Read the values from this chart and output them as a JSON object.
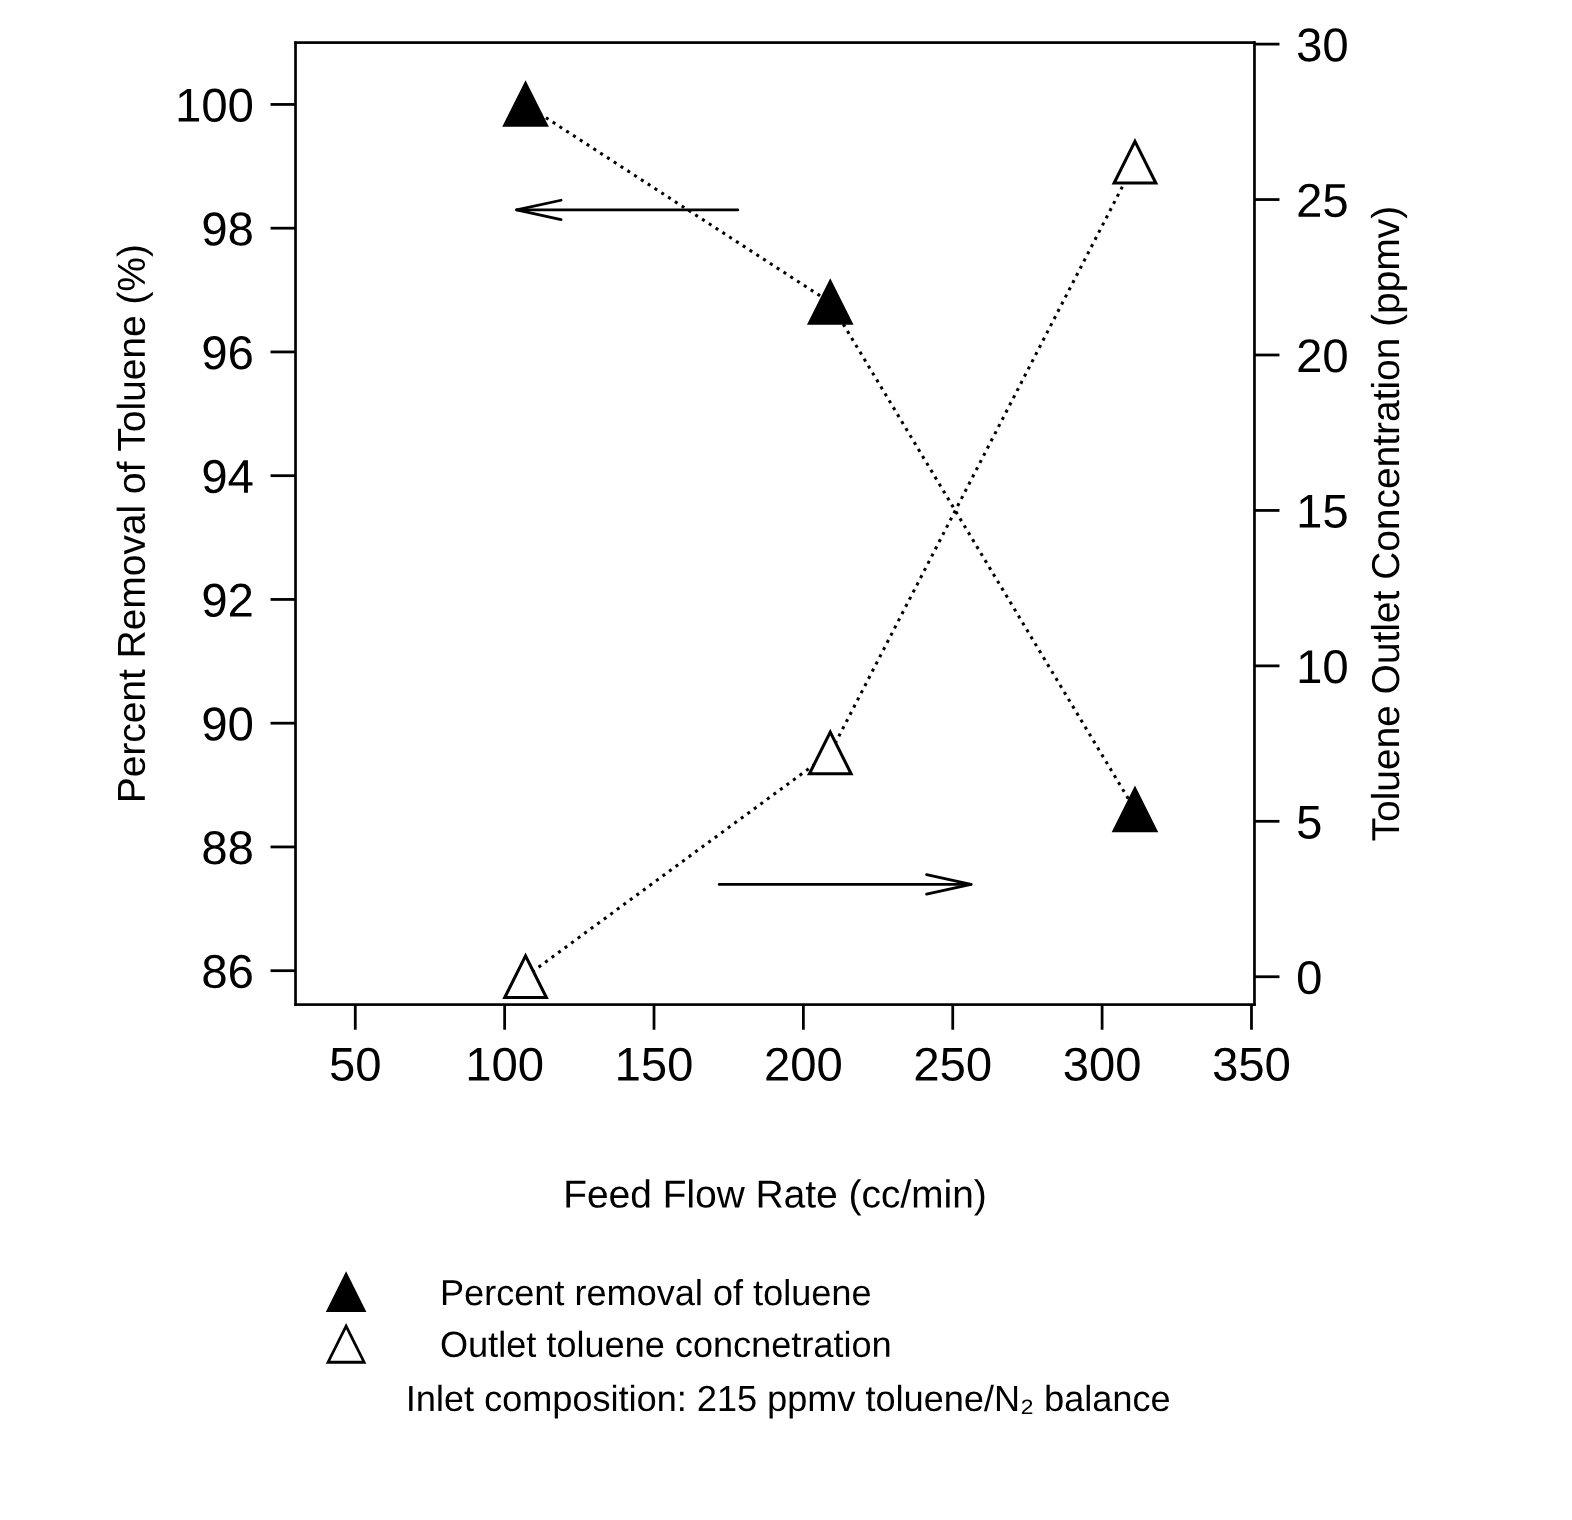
{
  "chart_data": {
    "type": "line",
    "xlabel": "Feed Flow Rate (cc/min)",
    "ylabel": "Percent Removal of Toluene (%)",
    "y2label": "Toluene Outlet Concentration (ppmv)",
    "x": [
      107,
      209,
      311
    ],
    "series": [
      {
        "name": "Percent removal of toluene",
        "color": "#000000",
        "values": [
          100,
          96.8,
          88.6
        ]
      },
      {
        "name": "Outlet toluene concnetration",
        "color": "#ffffff",
        "values": [
          0,
          7.2,
          26.2
        ],
        "axis": "y2"
      }
    ],
    "xlim": [
      30,
      351
    ],
    "xticks": [
      50,
      100,
      150,
      200,
      250,
      300,
      350
    ],
    "ylim": [
      85.45,
      101
    ],
    "yticks": [
      86,
      88,
      90,
      92,
      94,
      96,
      98,
      100
    ],
    "y2lim": [
      -0.9,
      30.05
    ],
    "y2ticks": [
      0,
      5,
      10,
      15,
      20,
      25,
      30
    ],
    "marker": "triangle",
    "line_style": "dotted",
    "grid": false,
    "legend": "bottom",
    "annotations": [
      "Inlet composition: 215 ppmv toluene/N₂ balance"
    ]
  }
}
